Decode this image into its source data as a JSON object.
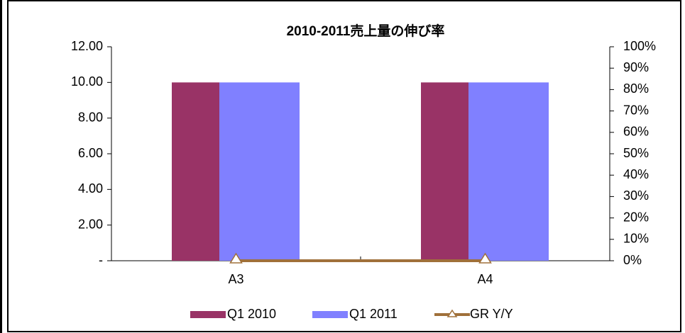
{
  "chart_data": {
    "type": "bar",
    "title": "2010-2011売上量の伸び率",
    "categories": [
      "A3",
      "A4"
    ],
    "series": [
      {
        "name": "Q1 2010",
        "color": "#993366",
        "values": [
          10,
          10
        ]
      },
      {
        "name": "Q1 2011",
        "color": "#8080ff",
        "values": [
          10,
          10
        ]
      },
      {
        "name": "GR Y/Y",
        "color": "#a0703a",
        "values": [
          0,
          0
        ],
        "axis": "y2",
        "type": "line"
      }
    ],
    "ylim": [
      0,
      12
    ],
    "yticks": [
      {
        "value": 0,
        "label": "-"
      },
      {
        "value": 2,
        "label": "2.00"
      },
      {
        "value": 4,
        "label": "4.00"
      },
      {
        "value": 6,
        "label": "6.00"
      },
      {
        "value": 8,
        "label": "8.00"
      },
      {
        "value": 10,
        "label": "10.00"
      },
      {
        "value": 12,
        "label": "12.00"
      }
    ],
    "y2lim": [
      0,
      100
    ],
    "y2ticks": [
      {
        "value": 0,
        "label": "0%"
      },
      {
        "value": 10,
        "label": "10%"
      },
      {
        "value": 20,
        "label": "20%"
      },
      {
        "value": 30,
        "label": "30%"
      },
      {
        "value": 40,
        "label": "40%"
      },
      {
        "value": 50,
        "label": "50%"
      },
      {
        "value": 60,
        "label": "60%"
      },
      {
        "value": 70,
        "label": "70%"
      },
      {
        "value": 80,
        "label": "80%"
      },
      {
        "value": 90,
        "label": "90%"
      },
      {
        "value": 100,
        "label": "100%"
      }
    ],
    "legend": "bottom"
  }
}
